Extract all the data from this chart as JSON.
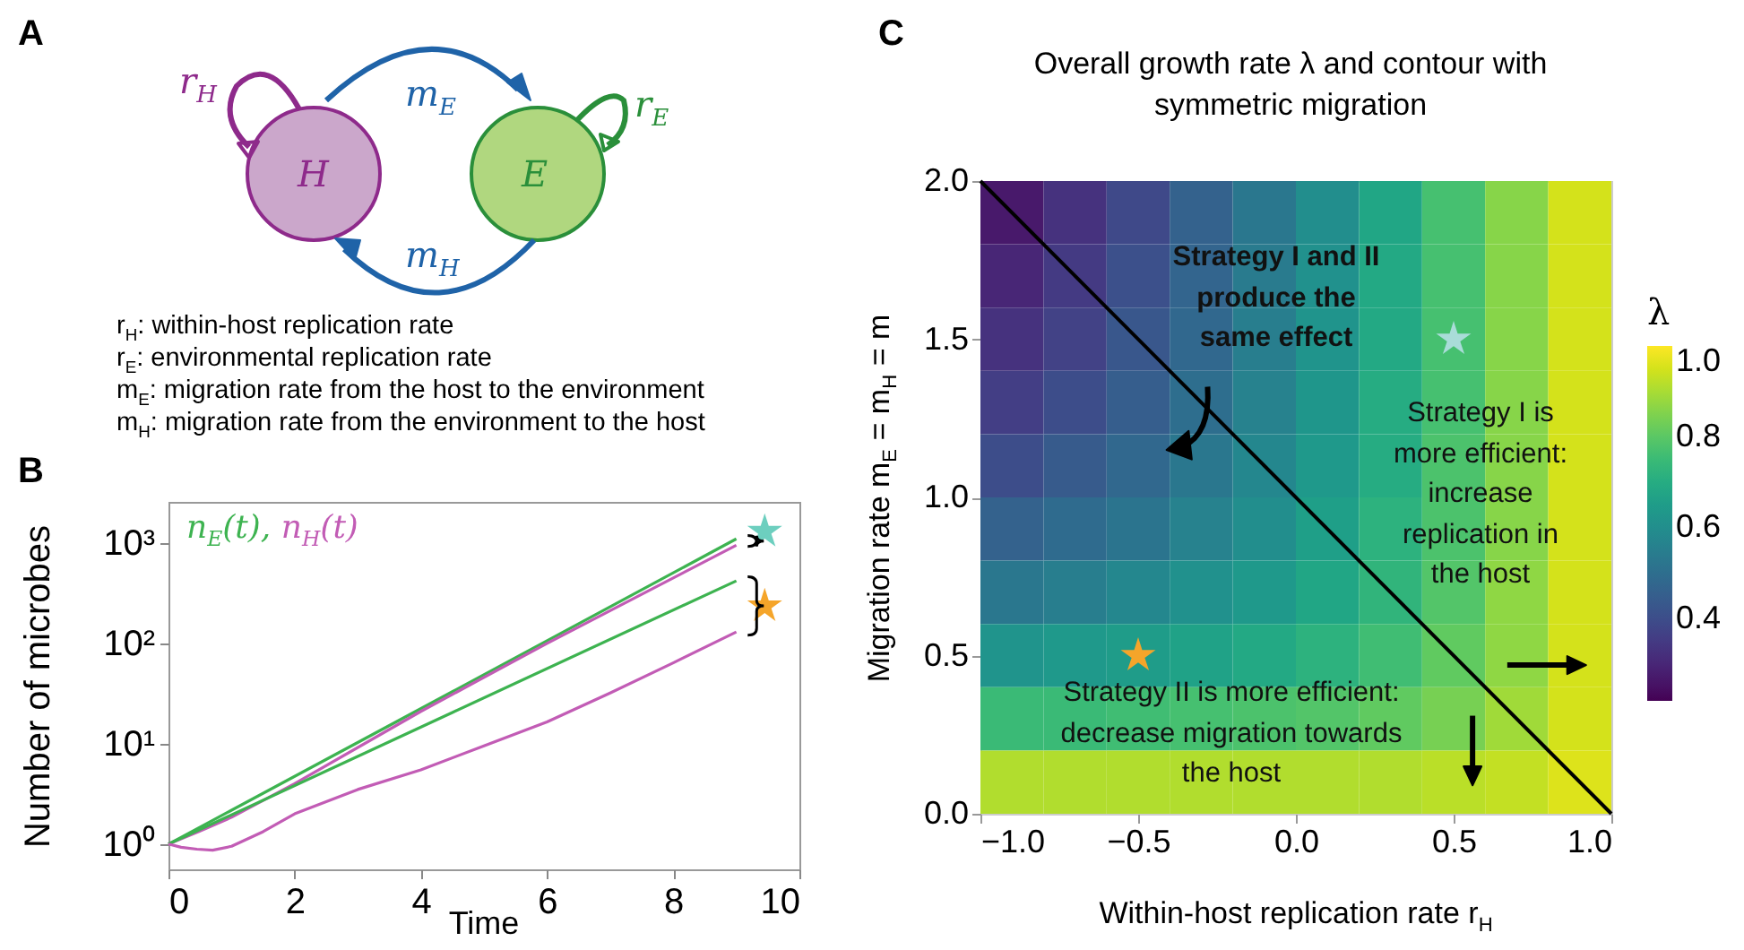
{
  "chart_data": [
    {
      "type": "other",
      "annotations": [
        "A",
        "H",
        "E",
        "r$_{H}$",
        "m$_{E}$",
        "r$_{E}$",
        "m$_{H}$",
        "r$_{H}$: within-host replication rate",
        "r$_{E}$: environmental replication rate",
        "m$_{E}$: migration rate from the host to the environment",
        "m$_{H}$: migration rate from the environment to the host"
      ]
    },
    {
      "type": "line",
      "annotations": [
        "B"
      ],
      "xlabel": "Time",
      "ylabel": "Number of microbes",
      "log": "y",
      "xlim": [
        0,
        10
      ],
      "xticks": [
        0,
        2,
        4,
        6,
        8,
        10
      ],
      "ylim": [
        0.56,
        2570
      ],
      "yticks": [
        {
          "value": 1,
          "label": "10⁰"
        },
        {
          "value": 10,
          "label": "10¹"
        },
        {
          "value": 100,
          "label": "10²"
        },
        {
          "value": 1000,
          "label": "10³"
        }
      ],
      "series": [
        {
          "name": "n$_{E}$(t),",
          "color": "#3db350",
          "x": [
            0,
            4.5,
            9
          ],
          "values": [
            1,
            33,
            1100
          ]
        },
        {
          "name": "n$_{H}$(t)",
          "color": "#c25cb5",
          "x": [
            0,
            0.5,
            1,
            2,
            4,
            6,
            9
          ],
          "values": [
            1,
            1.35,
            1.85,
            4.0,
            21,
            100,
            950
          ]
        },
        {
          "color": "#3db350",
          "x": [
            0,
            4.5,
            9
          ],
          "values": [
            1,
            20.5,
            420
          ]
        },
        {
          "color": "#c25cb5",
          "x": [
            0,
            0.2,
            0.45,
            0.7,
            1,
            1.5,
            2,
            3,
            4,
            5,
            6,
            7,
            8,
            9
          ],
          "values": [
            1,
            0.93,
            0.89,
            0.87,
            0.95,
            1.33,
            2.0,
            3.5,
            5.5,
            9.5,
            16.5,
            32,
            64,
            130
          ]
        },
        {
          "type": "scatter",
          "color": "#6dcfbf",
          "marker": "star",
          "x": [
            9.45
          ],
          "values": [
            1300
          ]
        },
        {
          "type": "scatter",
          "color": "#f5a52a",
          "marker": "star",
          "x": [
            9.45
          ],
          "values": [
            235
          ]
        }
      ]
    },
    {
      "type": "heatmap",
      "annotations": [
        "C",
        "Strategy I and II\nproduce the\nsame effect",
        "Strategy I is\nmore efficient:\nincrease\nreplication in\nthe host",
        "Strategy II is more efficient:\ndecrease migration towards\nthe host"
      ],
      "title": "Overall growth rate λ and contour with symmetric migration",
      "xlabel": "Within-host replication rate r$_{H}$",
      "ylabel": "Migration rate m$_{E}$ = m$_{H}$ = m",
      "clabel": "λ",
      "xlim": [
        -1,
        1
      ],
      "ylim": [
        0,
        2
      ],
      "xticks": [
        {
          "value": -1,
          "label": "−1.0"
        },
        {
          "value": -0.5,
          "label": "−0.5"
        },
        {
          "value": 0,
          "label": "0.0"
        },
        {
          "value": 0.5,
          "label": "0.5"
        },
        {
          "value": 1,
          "label": "1.0"
        }
      ],
      "yticks": [
        {
          "value": 0,
          "label": "0.0"
        },
        {
          "value": 0.5,
          "label": "0.5"
        },
        {
          "value": 1,
          "label": "1.0"
        },
        {
          "value": 1.5,
          "label": "1.5"
        },
        {
          "value": 2,
          "label": "2.0"
        }
      ],
      "clim": [
        0.22,
        1
      ],
      "cticks": [
        {
          "value": 0.4,
          "label": "0.4"
        },
        {
          "value": 0.6,
          "label": "0.6"
        },
        {
          "value": 0.8,
          "label": "0.8"
        },
        {
          "value": 1,
          "label": "1.0"
        }
      ],
      "cells": [
        [
          0.27,
          0.33,
          0.39,
          0.46,
          0.53,
          0.6,
          0.68,
          0.77,
          0.86,
          0.95
        ],
        [
          0.3,
          0.35,
          0.41,
          0.47,
          0.54,
          0.61,
          0.69,
          0.77,
          0.86,
          0.95
        ],
        [
          0.33,
          0.37,
          0.43,
          0.48,
          0.55,
          0.62,
          0.69,
          0.77,
          0.86,
          0.95
        ],
        [
          0.36,
          0.4,
          0.45,
          0.5,
          0.56,
          0.63,
          0.7,
          0.77,
          0.86,
          0.95
        ],
        [
          0.4,
          0.44,
          0.48,
          0.53,
          0.58,
          0.64,
          0.7,
          0.78,
          0.86,
          0.95
        ],
        [
          0.46,
          0.49,
          0.52,
          0.56,
          0.6,
          0.66,
          0.72,
          0.78,
          0.86,
          0.95
        ],
        [
          0.53,
          0.55,
          0.58,
          0.61,
          0.64,
          0.68,
          0.73,
          0.79,
          0.87,
          0.95
        ],
        [
          0.62,
          0.64,
          0.65,
          0.67,
          0.69,
          0.72,
          0.76,
          0.81,
          0.87,
          0.95
        ],
        [
          0.75,
          0.75,
          0.76,
          0.77,
          0.78,
          0.79,
          0.81,
          0.84,
          0.89,
          0.95
        ],
        [
          0.91,
          0.91,
          0.91,
          0.91,
          0.91,
          0.91,
          0.91,
          0.92,
          0.93,
          0.96
        ]
      ],
      "series": [
        {
          "type": "line",
          "color": "#000000",
          "x": [
            -1,
            1
          ],
          "values": [
            2,
            0
          ]
        },
        {
          "type": "scatter",
          "color": "#a9dcd8",
          "marker": "star",
          "x": [
            0.5
          ],
          "values": [
            1.5
          ]
        },
        {
          "type": "scatter",
          "color": "#f5a52a",
          "marker": "star",
          "x": [
            -0.5
          ],
          "values": [
            0.5
          ]
        }
      ]
    }
  ]
}
